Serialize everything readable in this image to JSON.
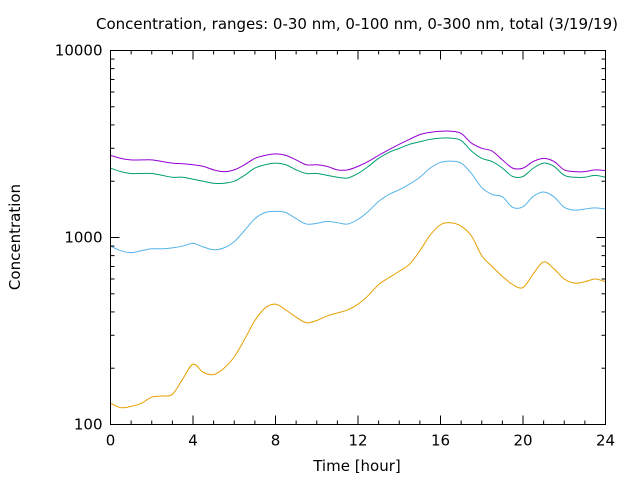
{
  "chart_data": {
    "type": "line",
    "title": "Concentration, ranges: 0-30 nm, 0-100 nm, 0-300 nm, total (3/19/19)",
    "xlabel": "Time [hour]",
    "ylabel": "Concentration",
    "xlim": [
      0,
      24
    ],
    "ylim": [
      100,
      10000
    ],
    "yscale": "log",
    "grid": false,
    "x_ticks": [
      0,
      4,
      8,
      12,
      16,
      20,
      24
    ],
    "x_tick_labels": [
      "0",
      "4",
      "8",
      "12",
      "16",
      "20",
      "24"
    ],
    "y_ticks": [
      100,
      1000,
      10000
    ],
    "y_tick_labels": [
      "100",
      "1000",
      "10000"
    ],
    "x": [
      0,
      0.5,
      1,
      1.5,
      2,
      2.5,
      3,
      3.5,
      4,
      4.5,
      5,
      5.5,
      6,
      6.5,
      7,
      7.5,
      8,
      8.5,
      9,
      9.5,
      10,
      10.5,
      11,
      11.5,
      12,
      12.5,
      13,
      13.5,
      14,
      14.5,
      15,
      15.5,
      16,
      16.5,
      17,
      17.5,
      18,
      18.5,
      19,
      19.5,
      20,
      20.5,
      21,
      21.5,
      22,
      22.5,
      23,
      23.5,
      24
    ],
    "series": [
      {
        "color": "#e69f00",
        "values": [
          130,
          123,
          125,
          130,
          140,
          142,
          145,
          175,
          210,
          190,
          185,
          200,
          230,
          285,
          360,
          420,
          440,
          410,
          375,
          350,
          360,
          380,
          395,
          410,
          440,
          490,
          560,
          610,
          660,
          720,
          850,
          1030,
          1170,
          1200,
          1150,
          1020,
          800,
          700,
          620,
          560,
          540,
          640,
          740,
          680,
          600,
          570,
          580,
          600,
          580
        ]
      },
      {
        "color": "#56b4e9",
        "values": [
          900,
          850,
          830,
          850,
          870,
          870,
          880,
          900,
          930,
          890,
          860,
          880,
          950,
          1090,
          1260,
          1360,
          1380,
          1360,
          1260,
          1180,
          1190,
          1220,
          1200,
          1180,
          1250,
          1380,
          1560,
          1700,
          1800,
          1930,
          2100,
          2350,
          2520,
          2560,
          2500,
          2200,
          1850,
          1700,
          1650,
          1450,
          1460,
          1660,
          1750,
          1650,
          1450,
          1400,
          1420,
          1440,
          1420
        ]
      },
      {
        "color": "#009e73",
        "values": [
          2350,
          2250,
          2200,
          2200,
          2200,
          2150,
          2100,
          2100,
          2050,
          2000,
          1950,
          1950,
          2000,
          2150,
          2350,
          2450,
          2500,
          2450,
          2300,
          2200,
          2200,
          2150,
          2100,
          2080,
          2200,
          2400,
          2650,
          2850,
          3000,
          3150,
          3250,
          3350,
          3400,
          3400,
          3300,
          2900,
          2650,
          2550,
          2350,
          2120,
          2120,
          2350,
          2500,
          2400,
          2150,
          2100,
          2100,
          2150,
          2100
        ]
      },
      {
        "color": "#9400d3",
        "values": [
          2750,
          2650,
          2600,
          2600,
          2600,
          2550,
          2500,
          2480,
          2450,
          2400,
          2300,
          2250,
          2300,
          2450,
          2650,
          2750,
          2800,
          2750,
          2600,
          2450,
          2450,
          2400,
          2300,
          2300,
          2400,
          2550,
          2750,
          2950,
          3150,
          3350,
          3550,
          3650,
          3700,
          3700,
          3600,
          3200,
          3000,
          2900,
          2600,
          2350,
          2350,
          2550,
          2650,
          2550,
          2300,
          2250,
          2250,
          2300,
          2280
        ]
      }
    ]
  }
}
